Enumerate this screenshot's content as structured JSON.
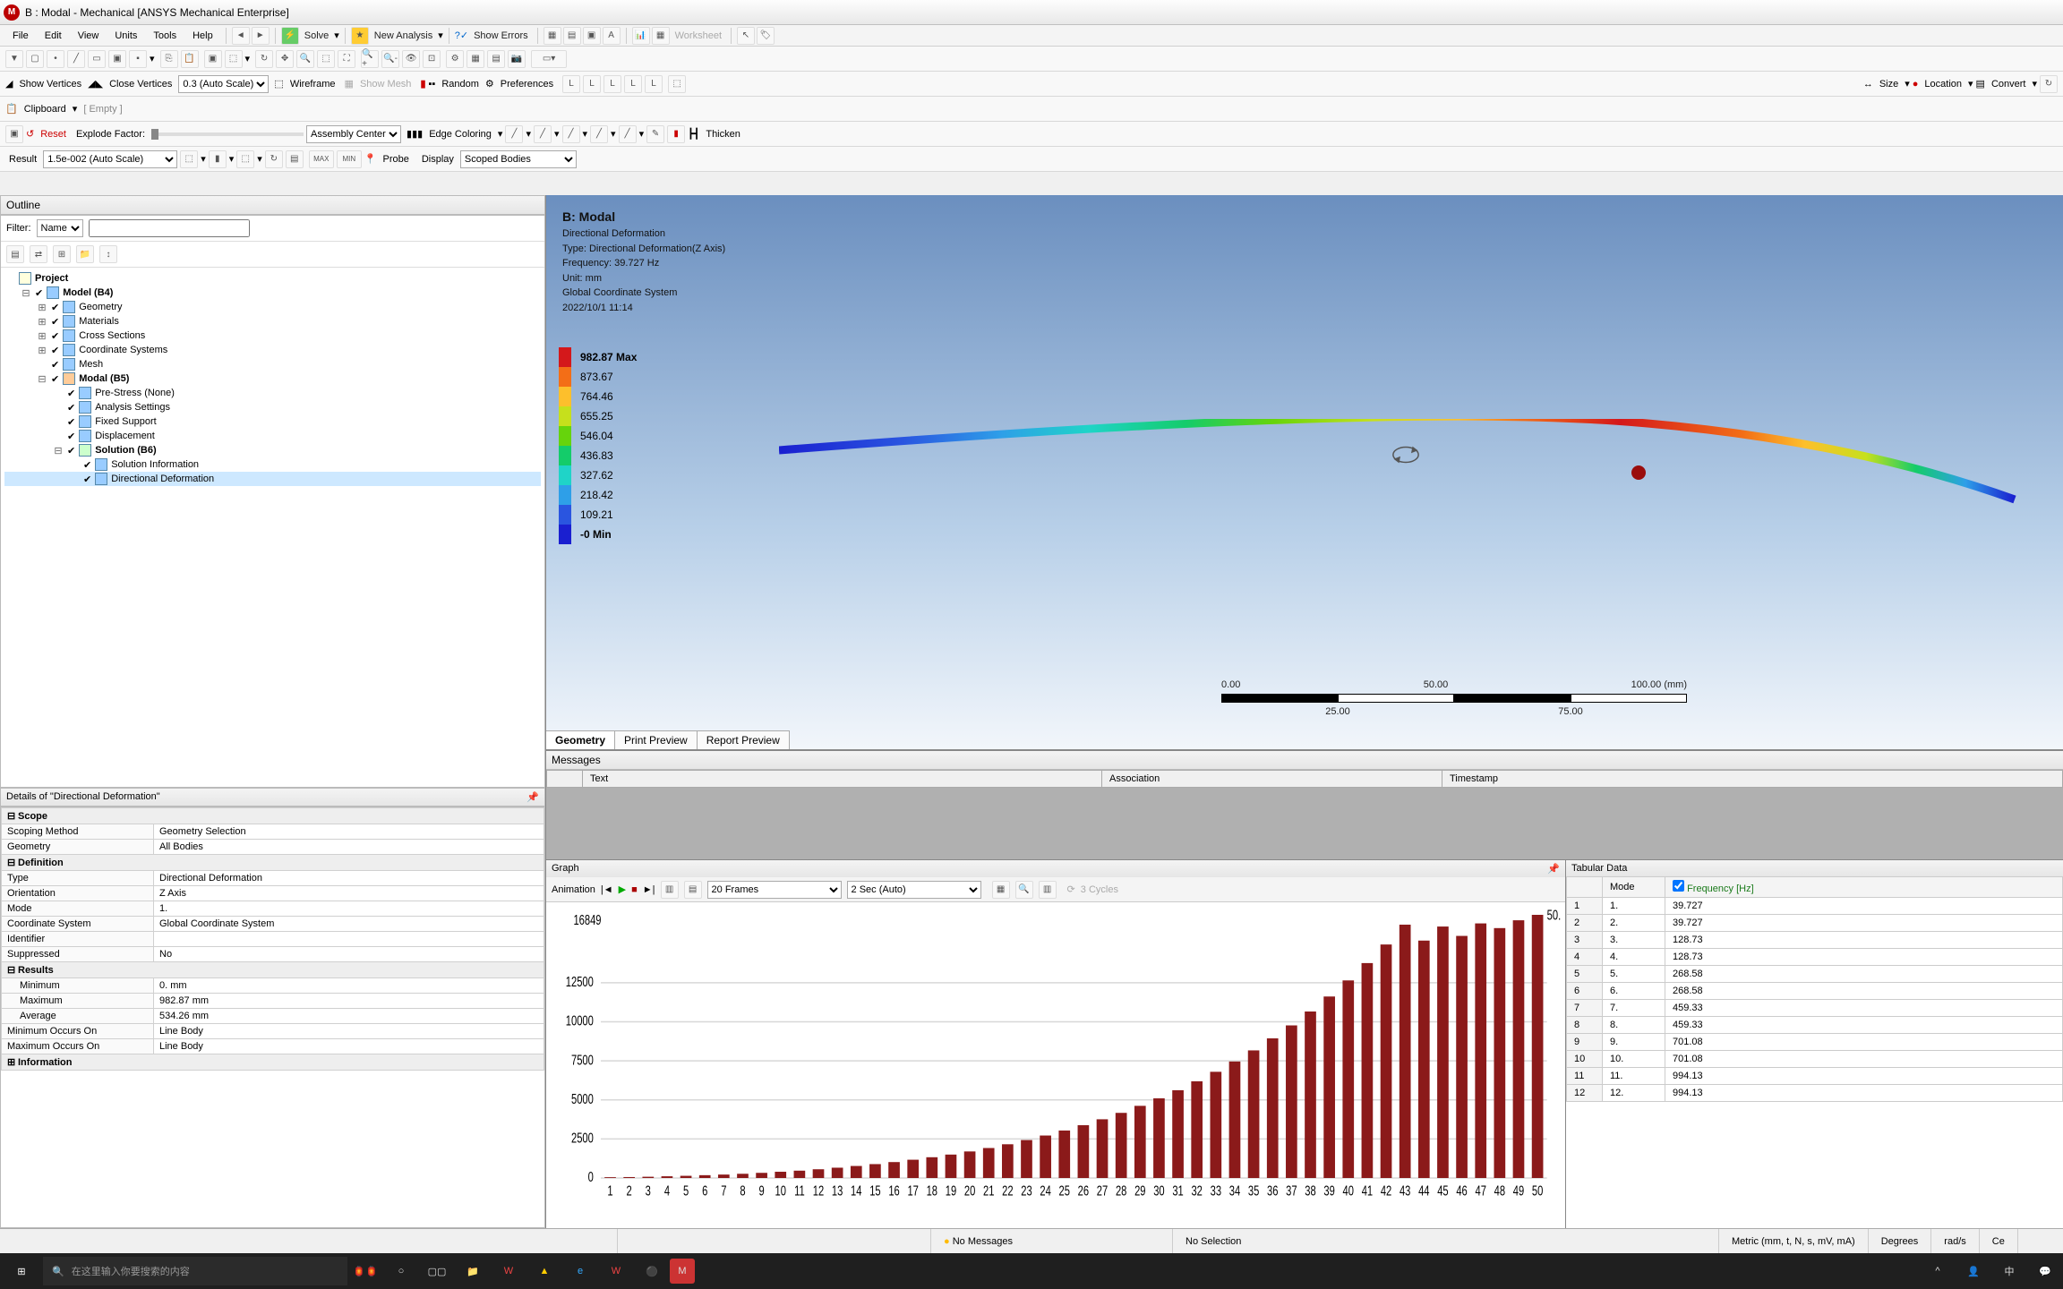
{
  "window_title": "B : Modal - Mechanical [ANSYS Mechanical Enterprise]",
  "menu": {
    "file": "File",
    "edit": "Edit",
    "view": "View",
    "units": "Units",
    "tools": "Tools",
    "help": "Help",
    "solve": "Solve",
    "new_analysis": "New Analysis",
    "show_errors": "Show Errors",
    "worksheet": "Worksheet"
  },
  "tb2": {
    "show_vertices": "Show Vertices",
    "close_vertices": "Close Vertices",
    "autoscale": "0.3 (Auto Scale)",
    "wireframe": "Wireframe",
    "show_mesh": "Show Mesh",
    "random": "Random",
    "preferences": "Preferences",
    "size": "Size",
    "location": "Location",
    "convert": "Convert"
  },
  "tb3": {
    "clipboard": "Clipboard",
    "empty": "[ Empty ]"
  },
  "tb4": {
    "reset": "Reset",
    "explode": "Explode Factor:",
    "asm_center": "Assembly Center",
    "edge_coloring": "Edge Coloring",
    "thicken": "Thicken"
  },
  "tb5": {
    "result": "Result",
    "scale": "1.5e-002 (Auto Scale)",
    "probe": "Probe",
    "display": "Display",
    "scoped": "Scoped Bodies"
  },
  "outline": {
    "title": "Outline",
    "filter": "Filter:",
    "filter_val": "Name",
    "project": "Project",
    "model": "Model (B4)",
    "geometry": "Geometry",
    "materials": "Materials",
    "cross": "Cross Sections",
    "coord": "Coordinate Systems",
    "mesh": "Mesh",
    "modal": "Modal (B5)",
    "prestress": "Pre-Stress (None)",
    "analysis": "Analysis Settings",
    "fixed": "Fixed Support",
    "disp": "Displacement",
    "solution": "Solution (B6)",
    "solinfo": "Solution Information",
    "dirdef": "Directional Deformation"
  },
  "details": {
    "title": "Details of \"Directional Deformation\"",
    "scope": "Scope",
    "scoping_method_k": "Scoping Method",
    "scoping_method_v": "Geometry Selection",
    "geometry_k": "Geometry",
    "geometry_v": "All Bodies",
    "definition": "Definition",
    "type_k": "Type",
    "type_v": "Directional Deformation",
    "orientation_k": "Orientation",
    "orientation_v": "Z Axis",
    "mode_k": "Mode",
    "mode_v": "1.",
    "cs_k": "Coordinate System",
    "cs_v": "Global Coordinate System",
    "id_k": "Identifier",
    "id_v": "",
    "sup_k": "Suppressed",
    "sup_v": "No",
    "results": "Results",
    "min_k": "Minimum",
    "min_v": "0. mm",
    "max_k": "Maximum",
    "max_v": "982.87 mm",
    "avg_k": "Average",
    "avg_v": "534.26 mm",
    "minoc_k": "Minimum Occurs On",
    "minoc_v": "Line Body",
    "maxoc_k": "Maximum Occurs On",
    "maxoc_v": "Line Body",
    "info": "Information"
  },
  "viewport": {
    "title": "B: Modal",
    "sub1": "Directional Deformation",
    "sub2": "Type: Directional Deformation(Z Axis)",
    "sub3": "Frequency: 39.727 Hz",
    "sub4": "Unit: mm",
    "sub5": "Global Coordinate System",
    "sub6": "2022/10/1 11:14",
    "legend": [
      {
        "c": "#d4181b",
        "v": "982.87 Max"
      },
      {
        "c": "#f36e17",
        "v": "873.67"
      },
      {
        "c": "#fdbf2c",
        "v": "764.46"
      },
      {
        "c": "#c6e01c",
        "v": "655.25"
      },
      {
        "c": "#66d40c",
        "v": "546.04"
      },
      {
        "c": "#14cc6a",
        "v": "436.83"
      },
      {
        "c": "#1fd4c8",
        "v": "327.62"
      },
      {
        "c": "#2e9fe8",
        "v": "218.42"
      },
      {
        "c": "#2a55e0",
        "v": "109.21"
      },
      {
        "c": "#1a1fd0",
        "v": "-0 Min"
      }
    ],
    "scale": {
      "t0": "0.00",
      "t25": "25.00",
      "t50": "50.00",
      "t75": "75.00",
      "t100": "100.00 (mm)",
      "colors": [
        "#000",
        "#fff",
        "#000",
        "#fff"
      ]
    },
    "tabs": {
      "geometry": "Geometry",
      "print": "Print Preview",
      "report": "Report Preview"
    }
  },
  "messages": {
    "title": "Messages",
    "col_text": "Text",
    "col_assoc": "Association",
    "col_ts": "Timestamp"
  },
  "graph": {
    "title": "Graph",
    "animation": "Animation",
    "frames": "20 Frames",
    "duration": "2 Sec (Auto)",
    "cycles": "3 Cycles",
    "ymax_label": "16849",
    "yticks": [
      "12500",
      "10000",
      "7500",
      "5000",
      "2500",
      "0"
    ],
    "top_right": "50.",
    "values": [
      50,
      60,
      80,
      110,
      140,
      180,
      220,
      270,
      330,
      400,
      470,
      560,
      660,
      770,
      890,
      1020,
      1170,
      1330,
      1500,
      1700,
      1920,
      2160,
      2430,
      2720,
      3040,
      3380,
      3760,
      4170,
      4620,
      5100,
      5620,
      6190,
      6800,
      7460,
      8170,
      8940,
      9770,
      10660,
      11620,
      12650,
      13760,
      14950,
      16220,
      15200,
      16100,
      15500,
      16300,
      16000,
      16500,
      16849
    ],
    "bar_color": "#8b1a1a",
    "grid_color": "#d8d8d8"
  },
  "tabular": {
    "title": "Tabular Data",
    "col_mode": "Mode",
    "col_freq": "Frequency [Hz]",
    "rows": [
      {
        "i": "1",
        "m": "1.",
        "f": "39.727"
      },
      {
        "i": "2",
        "m": "2.",
        "f": "39.727"
      },
      {
        "i": "3",
        "m": "3.",
        "f": "128.73"
      },
      {
        "i": "4",
        "m": "4.",
        "f": "128.73"
      },
      {
        "i": "5",
        "m": "5.",
        "f": "268.58"
      },
      {
        "i": "6",
        "m": "6.",
        "f": "268.58"
      },
      {
        "i": "7",
        "m": "7.",
        "f": "459.33"
      },
      {
        "i": "8",
        "m": "8.",
        "f": "459.33"
      },
      {
        "i": "9",
        "m": "9.",
        "f": "701.08"
      },
      {
        "i": "10",
        "m": "10.",
        "f": "701.08"
      },
      {
        "i": "11",
        "m": "11.",
        "f": "994.13"
      },
      {
        "i": "12",
        "m": "12.",
        "f": "994.13"
      }
    ]
  },
  "status": {
    "nomsg": "No Messages",
    "nosel": "No Selection",
    "metric": "Metric (mm, t, N, s, mV, mA)",
    "deg": "Degrees",
    "rad": "rad/s",
    "cel": "Ce"
  },
  "taskbar": {
    "search_placeholder": "在这里输入你要搜索的内容"
  }
}
